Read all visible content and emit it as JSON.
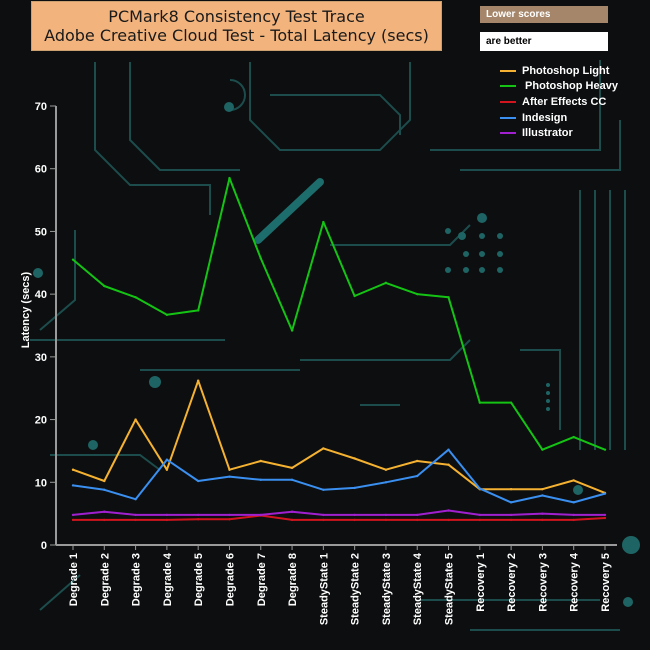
{
  "chart_data": {
    "type": "line",
    "title": [
      "PCMark8 Consistency Test Trace",
      "Adobe Creative Cloud Test -  Total Latency (secs)"
    ],
    "annotation": [
      "Lower scores",
      "are better"
    ],
    "xlabel": "",
    "ylabel": "Latency (secs)",
    "ylim": [
      0,
      70
    ],
    "yticks": [
      0,
      10,
      20,
      30,
      40,
      50,
      60,
      70
    ],
    "grid": false,
    "legend_position": "top-right",
    "categories": [
      "Degrade 1",
      "Degrade 2",
      "Degrade 3",
      "Degrade 4",
      "Degrade 5",
      "Degrade 6",
      "Degrade 7",
      "Degrade 8",
      "SteadyState 1",
      "SteadyState 2",
      "SteadyState 3",
      "SteadyState 4",
      "SteadyState 5",
      "Recovery 1",
      "Recovery 2",
      "Recovery 3",
      "Recovery 4",
      "Recovery 5"
    ],
    "series": [
      {
        "name": "Photoshop Light",
        "color": "#f5b232",
        "values": [
          12,
          10.2,
          20,
          12,
          26.2,
          12,
          13.4,
          12.3,
          15.4,
          13.8,
          12,
          13.4,
          12.8,
          8.9,
          8.9,
          8.9,
          10.3,
          8.3
        ]
      },
      {
        "name": " Photoshop Heavy",
        "color": "#15c315",
        "values": [
          45.5,
          41.3,
          39.5,
          36.7,
          37.4,
          58.5,
          45.7,
          34.2,
          51.5,
          39.7,
          41.8,
          40,
          39.5,
          22.7,
          22.7,
          15.2,
          17.2,
          15.2
        ]
      },
      {
        "name": "After Effects CC",
        "color": "#d2141e",
        "values": [
          4,
          4,
          4,
          4,
          4.1,
          4.1,
          4.7,
          4,
          4,
          4,
          4,
          4,
          4,
          4,
          4,
          4,
          4,
          4.3
        ]
      },
      {
        "name": "Indesign",
        "color": "#3a8ff0",
        "values": [
          9.5,
          8.8,
          7.3,
          13.6,
          10.2,
          10.9,
          10.4,
          10.4,
          8.8,
          9.1,
          10,
          11,
          15.2,
          9,
          6.8,
          7.9,
          6.8,
          8.2
        ]
      },
      {
        "name": "Illustrator",
        "color": "#a020d0",
        "values": [
          4.8,
          5.3,
          4.8,
          4.8,
          4.8,
          4.8,
          4.8,
          5.3,
          4.8,
          4.8,
          4.8,
          4.8,
          5.5,
          4.8,
          4.8,
          5,
          4.8,
          4.8
        ]
      }
    ]
  }
}
